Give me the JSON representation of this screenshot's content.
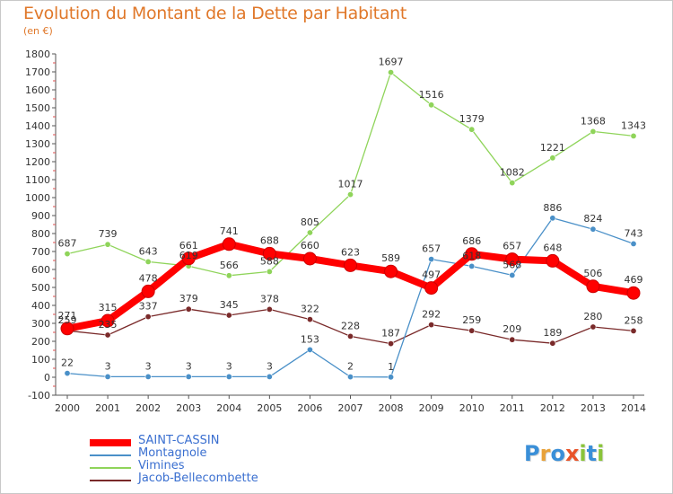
{
  "title": "Evolution du Montant de la Dette par Habitant",
  "subtitle": "(en €)",
  "logo": {
    "letters": [
      "P",
      "r",
      "o",
      "x",
      "i",
      "t",
      "i"
    ],
    "colors": [
      "#3a8fd8",
      "#e8a23a",
      "#3a8fd8",
      "#e8542a",
      "#8ac43a",
      "#3a8fd8",
      "#8ac43a"
    ]
  },
  "chart_data": {
    "type": "line",
    "title": "Evolution du Montant de la Dette par Habitant",
    "ylabel": "(en €)",
    "x": [
      "2000",
      "2001",
      "2002",
      "2003",
      "2004",
      "2005",
      "2006",
      "2007",
      "2008",
      "2009",
      "2010",
      "2011",
      "2012",
      "2013",
      "2014"
    ],
    "ylim": [
      -100,
      1800
    ],
    "yticks": [
      -100,
      0,
      100,
      200,
      300,
      400,
      500,
      600,
      700,
      800,
      900,
      1000,
      1100,
      1200,
      1300,
      1400,
      1500,
      1600,
      1700,
      1800
    ],
    "grid": false,
    "legend_position": "bottom-left",
    "series": [
      {
        "name": "SAINT-CASSIN",
        "color": "#ff0000",
        "values": [
          271,
          315,
          478,
          661,
          741,
          688,
          660,
          623,
          589,
          497,
          686,
          657,
          648,
          506,
          469
        ]
      },
      {
        "name": "Montagnole",
        "color": "#4a90c8",
        "values": [
          22,
          3,
          3,
          3,
          3,
          3,
          153,
          2,
          1,
          657,
          618,
          568,
          886,
          824,
          743
        ]
      },
      {
        "name": "Vimines",
        "color": "#8fd45a",
        "values": [
          687,
          739,
          643,
          619,
          566,
          588,
          805,
          1017,
          1697,
          1516,
          1379,
          1082,
          1221,
          1368,
          1343
        ]
      },
      {
        "name": "Jacob-Bellecombette",
        "color": "#7a2a2a",
        "values": [
          259,
          235,
          337,
          379,
          345,
          378,
          322,
          228,
          187,
          292,
          259,
          209,
          189,
          280,
          258
        ]
      }
    ],
    "data_labels": {
      "SAINT-CASSIN": [
        "271",
        "315",
        "478",
        "661",
        "741",
        "688",
        "660",
        "623",
        "589",
        "497",
        "686",
        "657",
        "648",
        "506",
        "469"
      ],
      "Montagnole": [
        "22",
        "3",
        "3",
        "3",
        "3",
        "3",
        "153",
        "2",
        "1",
        "657",
        "618",
        "568",
        "886",
        "824",
        "743"
      ],
      "Vimines": [
        "687",
        "739",
        "643",
        "619",
        "566",
        "588",
        "805",
        "1017",
        "1697",
        "1516",
        "1379",
        "1082",
        "1221",
        "1368",
        "1343"
      ],
      "Jacob-Bellecombette": [
        "259",
        "235",
        "337",
        "379",
        "345",
        "378",
        "322",
        "228",
        "187",
        "292",
        "259",
        "209",
        "189",
        "280",
        "258"
      ]
    }
  }
}
